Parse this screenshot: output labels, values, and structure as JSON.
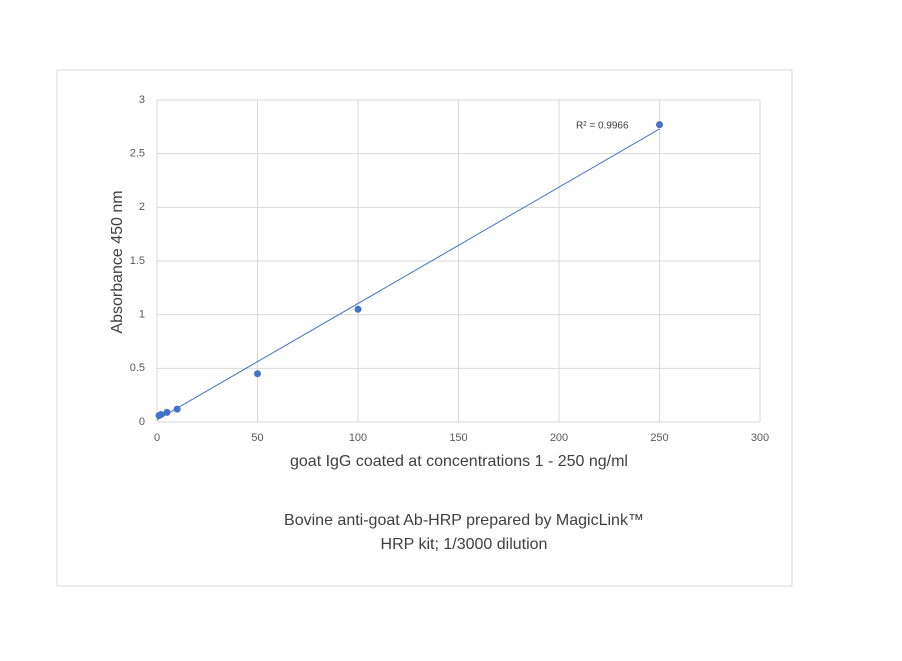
{
  "chart_data": {
    "type": "scatter",
    "x_label": "goat IgG coated at concentrations 1 - 250 ng/ml",
    "y_label": "Absorbance 450 nm",
    "caption_lines": [
      "Bovine anti-goat Ab-HRP prepared by MagicLink™",
      "HRP kit; 1/3000 dilution"
    ],
    "series": [
      {
        "x": [
          1,
          2,
          5,
          10,
          50,
          100,
          250
        ],
        "values": [
          0.06,
          0.07,
          0.09,
          0.12,
          0.45,
          1.05,
          2.77
        ],
        "color": "#4472c4"
      }
    ],
    "trendline": {
      "slope": 0.01084,
      "intercept": 0.02,
      "color": "#4472c4",
      "label": "R² = 0.9966"
    },
    "xlim": [
      0,
      300
    ],
    "xticks": [
      0,
      50,
      100,
      150,
      200,
      250,
      300
    ],
    "ylim": [
      0,
      3
    ],
    "yticks": [
      0,
      0.5,
      1,
      1.5,
      2,
      2.5,
      3
    ],
    "grid": true
  }
}
